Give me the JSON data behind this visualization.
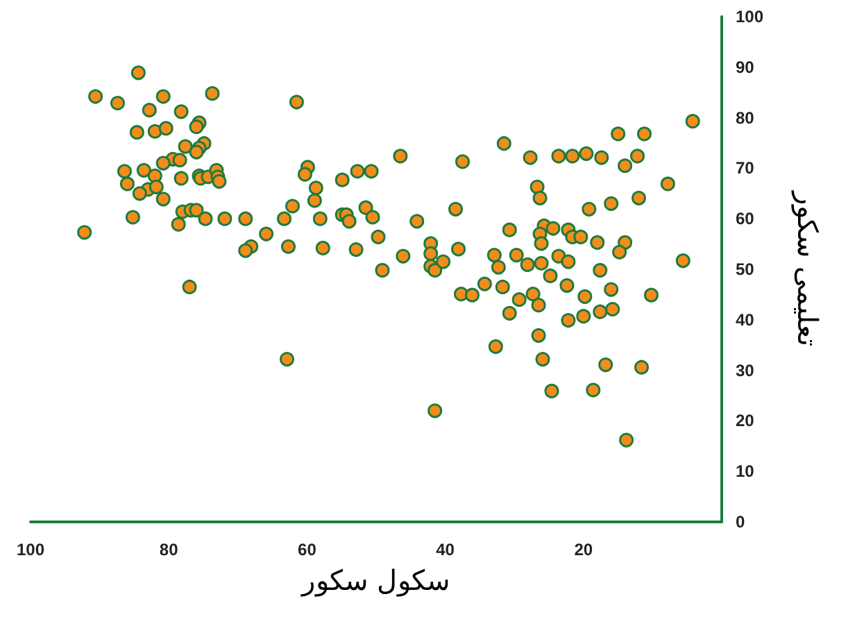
{
  "chart_data": {
    "type": "scatter",
    "xlabel": "سکول سکور",
    "ylabel": "تعلیمی سکور",
    "xlim": [
      100,
      0
    ],
    "xticks": [
      100,
      80,
      60,
      40,
      20
    ],
    "ylim": [
      0,
      100
    ],
    "yticks": [
      0,
      10,
      20,
      30,
      40,
      50,
      60,
      70,
      80,
      90,
      100
    ],
    "grid": false,
    "marker": "circle",
    "series": [
      {
        "color": "#f28c1c",
        "x": [
          84.4,
          90.6,
          87.4,
          82.8,
          80.8,
          78.2,
          75.6,
          76.0,
          73.7,
          84.6,
          82.0,
          80.4,
          77.6,
          74.9,
          75.6,
          76.0,
          79.4,
          80.8,
          78.4,
          86.4,
          83.6,
          82.0,
          86.0,
          83.0,
          81.8,
          84.2,
          80.8,
          78.2,
          75.6,
          75.4,
          74.3,
          73.1,
          72.9,
          72.7,
          78.0,
          76.8,
          76.0,
          78.6,
          74.7,
          71.9,
          68.9,
          85.2,
          92.2,
          77.0,
          61.5,
          65.9,
          68.1,
          68.9,
          63.3,
          62.1,
          62.7,
          59.9,
          60.3,
          58.7,
          58.9,
          58.1,
          57.7,
          54.9,
          52.7,
          50.7,
          54.9,
          54.3,
          53.9,
          51.5,
          50.5,
          49.7,
          52.9,
          49.1,
          46.1,
          46.5,
          44.1,
          62.9,
          4.2,
          15.0,
          11.2,
          31.5,
          37.5,
          27.7,
          23.6,
          21.6,
          19.6,
          17.4,
          14.0,
          12.2,
          7.8,
          26.7,
          26.3,
          12.0,
          16.0,
          19.2,
          38.5,
          42.1,
          42.1,
          42.1,
          41.5,
          40.3,
          38.1,
          30.7,
          25.7,
          26.3,
          24.4,
          22.2,
          21.6,
          20.4,
          26.1,
          18.0,
          14.0,
          14.8,
          5.6,
          32.9,
          32.3,
          29.7,
          28.1,
          26.1,
          23.6,
          22.2,
          17.6,
          24.8,
          34.3,
          37.7,
          36.1,
          31.7,
          29.3,
          27.3,
          26.5,
          22.4,
          19.8,
          16.0,
          10.2,
          30.7,
          22.2,
          20.0,
          17.6,
          15.8,
          32.7,
          26.5,
          25.9,
          16.8,
          11.6,
          24.6,
          18.6,
          41.5,
          13.8
        ],
        "values": [
          88.9,
          84.2,
          82.9,
          81.5,
          84.2,
          81.2,
          79.0,
          78.2,
          84.8,
          77.1,
          77.3,
          77.9,
          74.3,
          74.9,
          74.0,
          73.2,
          71.8,
          71.0,
          71.6,
          69.4,
          69.6,
          68.5,
          66.9,
          65.8,
          66.3,
          65.0,
          63.9,
          68.0,
          68.5,
          68.0,
          68.3,
          69.6,
          68.3,
          67.4,
          61.4,
          61.7,
          61.7,
          58.9,
          60.0,
          60.0,
          60.0,
          60.3,
          57.3,
          46.5,
          83.1,
          57.0,
          54.5,
          53.7,
          60.0,
          62.5,
          54.5,
          70.2,
          68.8,
          66.1,
          63.6,
          60.0,
          54.2,
          67.7,
          69.4,
          69.4,
          60.8,
          60.8,
          59.5,
          62.2,
          60.3,
          56.4,
          53.9,
          49.8,
          52.6,
          72.4,
          59.5,
          32.2,
          79.3,
          76.8,
          76.8,
          74.9,
          71.3,
          72.1,
          72.4,
          72.4,
          72.9,
          72.1,
          70.5,
          72.4,
          66.9,
          66.3,
          64.1,
          64.1,
          63.0,
          61.9,
          61.9,
          55.1,
          53.1,
          50.6,
          49.8,
          51.5,
          54.0,
          57.8,
          58.6,
          57.0,
          58.1,
          57.8,
          56.4,
          56.4,
          55.1,
          55.3,
          55.3,
          53.4,
          51.7,
          52.8,
          50.4,
          52.8,
          50.9,
          51.2,
          52.6,
          51.5,
          49.8,
          48.7,
          47.1,
          45.1,
          44.9,
          46.5,
          44.0,
          45.1,
          42.9,
          46.8,
          44.6,
          46.0,
          44.9,
          41.3,
          39.9,
          40.7,
          41.6,
          42.1,
          34.7,
          36.9,
          32.2,
          31.1,
          30.6,
          25.9,
          26.1,
          22.0,
          16.2
        ]
      }
    ]
  }
}
